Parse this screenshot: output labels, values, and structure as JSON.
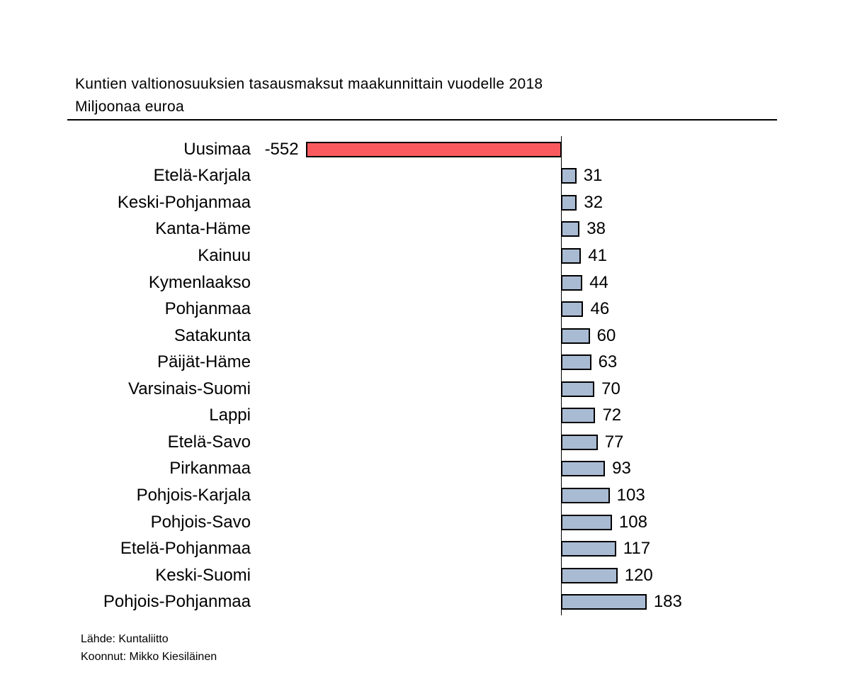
{
  "header": {
    "title": "Kuntien valtionosuuksien tasausmaksut maakunnittain vuodelle 2018",
    "subtitle": "Miljoonaa euroa"
  },
  "footer": {
    "source_line": "Lähde: Kuntaliitto",
    "author_line": "Koonnut: Mikko Kiesiläinen"
  },
  "colors": {
    "positive_bar_fill": "#a9bad3",
    "negative_bar_fill": "#fa5a5e",
    "bar_border": "#000000",
    "axis_line": "#000000",
    "rule_line": "#000000",
    "text": "#000000"
  },
  "chart_data": {
    "type": "bar",
    "orientation": "horizontal",
    "title": "Kuntien valtionosuuksien tasausmaksut maakunnittain vuodelle 2018",
    "subtitle": "Miljoonaa euroa",
    "unit": "Miljoonaa euroa",
    "grid": false,
    "legend": false,
    "value_labels": "outside-end",
    "xlim": [
      -600,
      200
    ],
    "categories": [
      "Uusimaa",
      "Etelä-Karjala",
      "Keski-Pohjanmaa",
      "Kanta-Häme",
      "Kainuu",
      "Kymenlaakso",
      "Pohjanmaa",
      "Satakunta",
      "Päijät-Häme",
      "Varsinais-Suomi",
      "Lappi",
      "Etelä-Savo",
      "Pirkanmaa",
      "Pohjois-Karjala",
      "Pohjois-Savo",
      "Etelä-Pohjanmaa",
      "Keski-Suomi",
      "Pohjois-Pohjanmaa"
    ],
    "values": [
      -552,
      31,
      32,
      38,
      41,
      44,
      46,
      60,
      63,
      70,
      72,
      77,
      93,
      103,
      108,
      117,
      120,
      183
    ],
    "value_label_texts": [
      "-552",
      "31",
      "32",
      "38",
      "41",
      "44",
      "46",
      "60",
      "63",
      "70",
      "72",
      "77",
      "93",
      "103",
      "108",
      "117",
      "120",
      "183"
    ]
  }
}
